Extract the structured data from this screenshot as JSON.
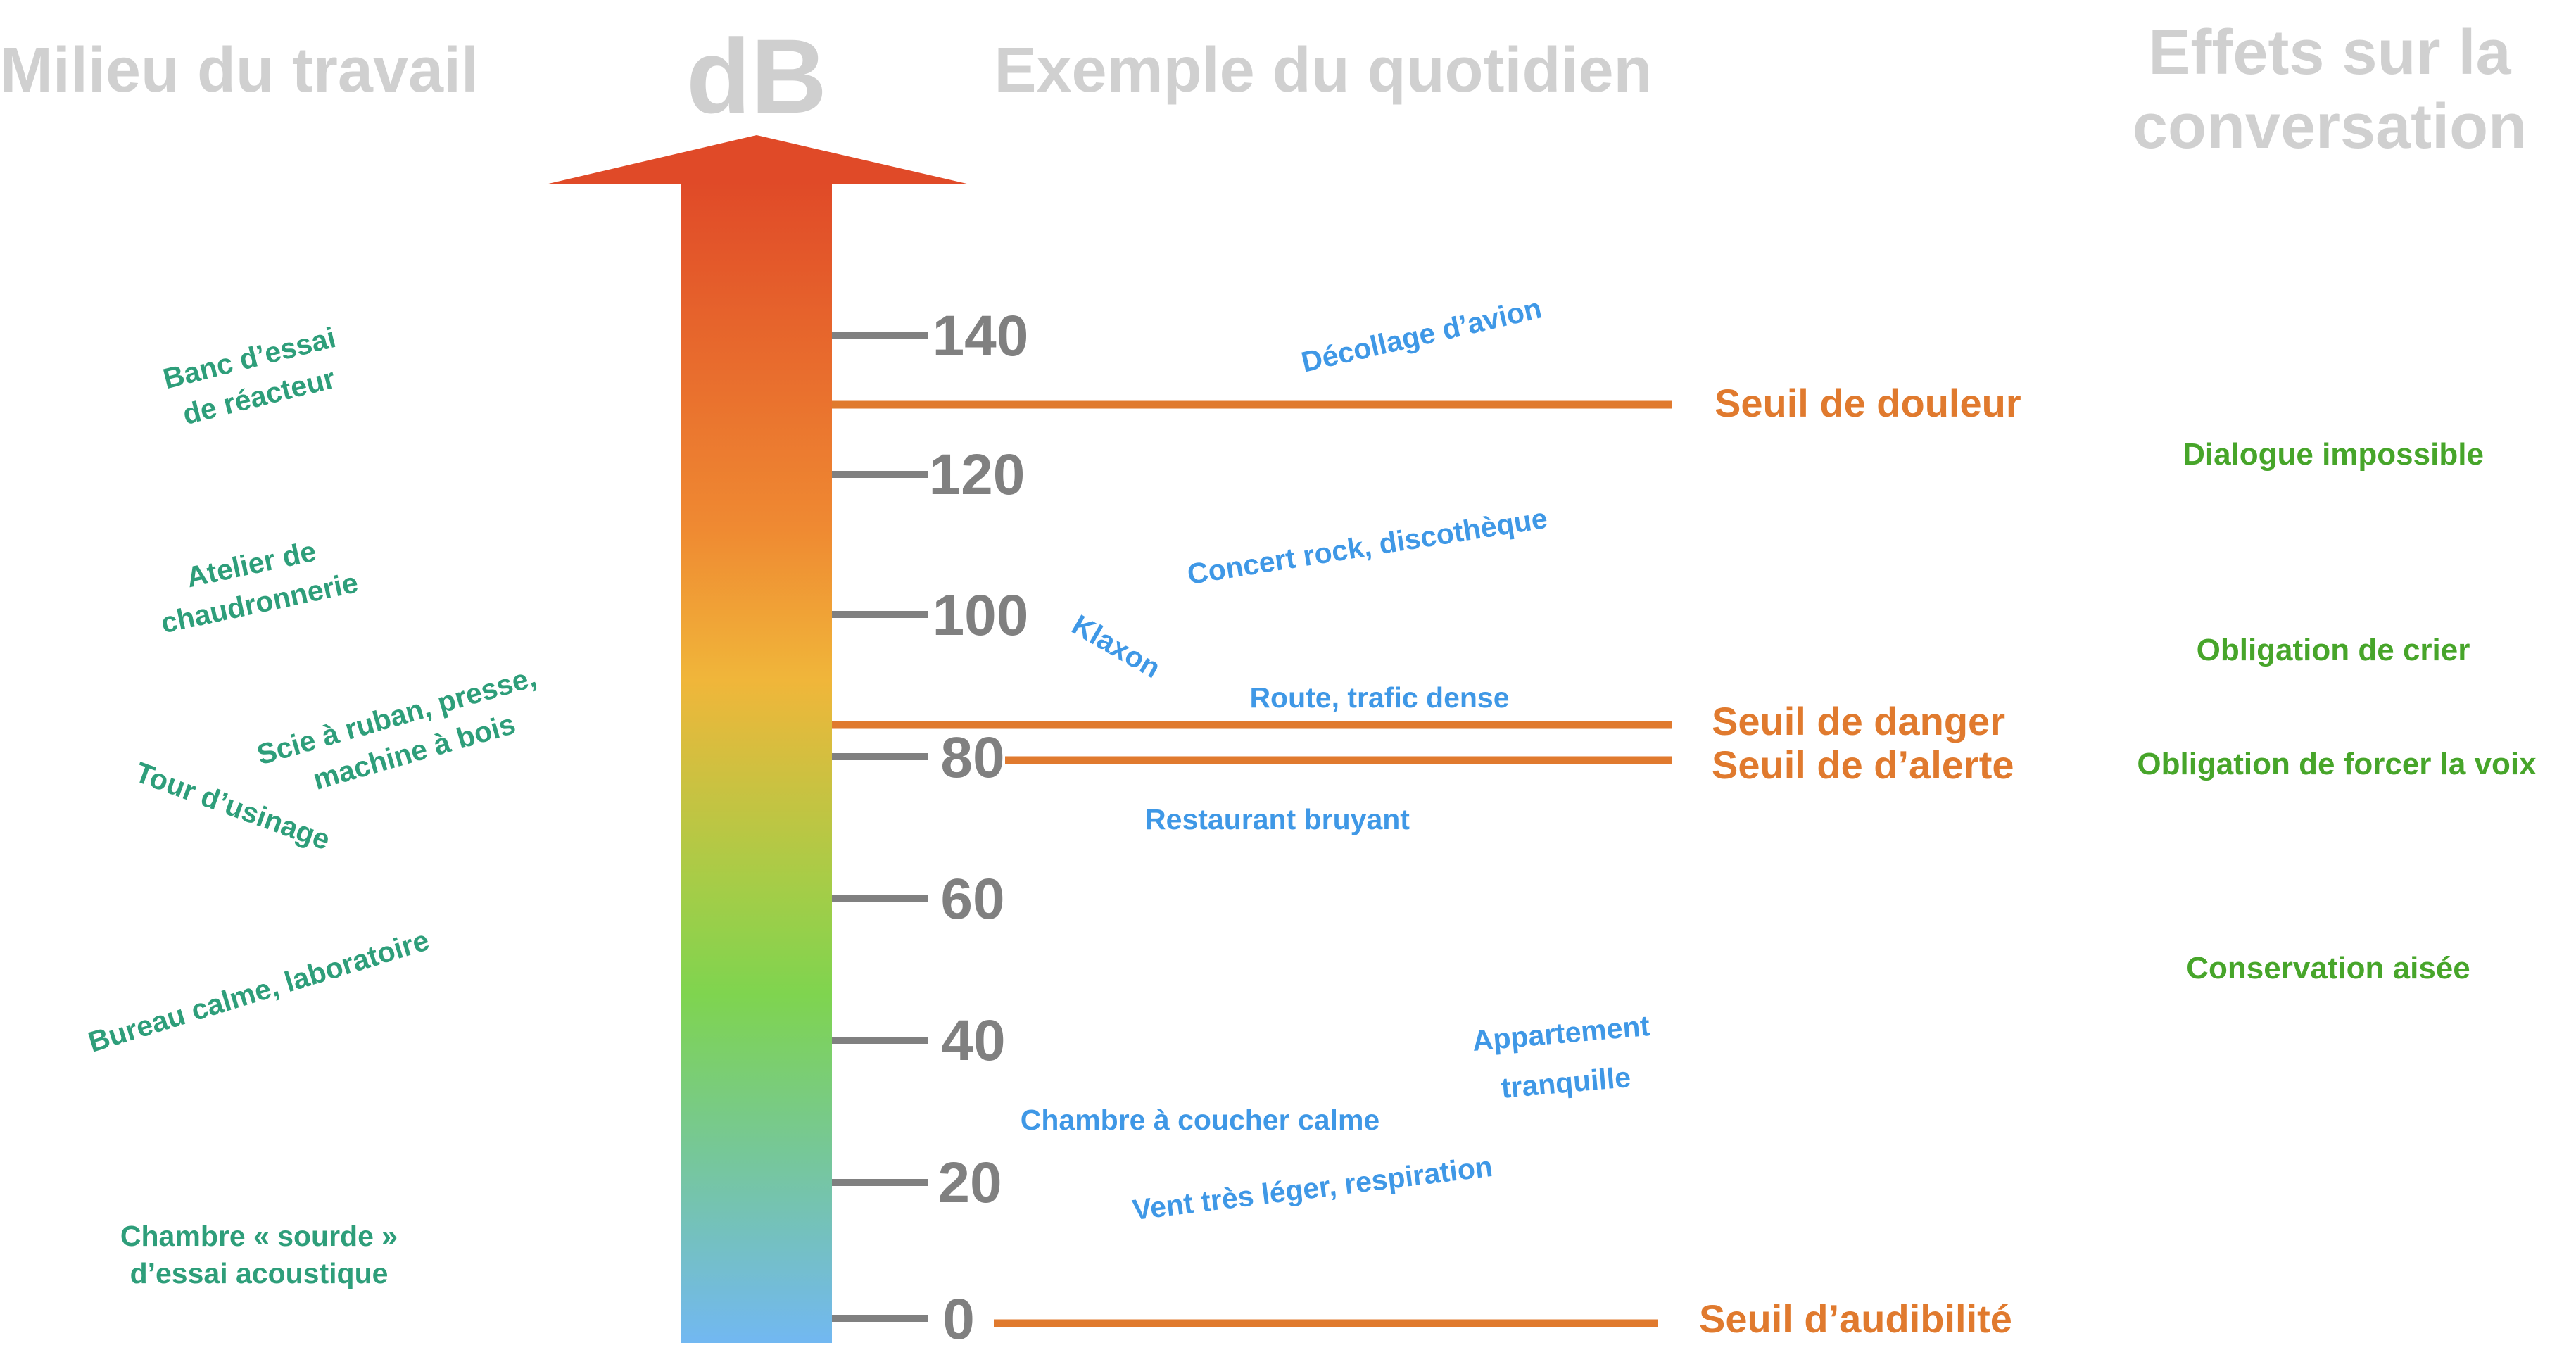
{
  "headers": {
    "workplace": "Milieu du travail",
    "unit": "dB",
    "daily": "Exemple du quotidien",
    "effects_line1": "Effets sur la",
    "effects_line2": "conversation"
  },
  "scale": {
    "min": 0,
    "max": 140,
    "ticks": [
      "0",
      "20",
      "40",
      "60",
      "80",
      "100",
      "120",
      "140"
    ]
  },
  "thresholds": [
    {
      "label": "Seuil de douleur"
    },
    {
      "label": "Seuil de danger"
    },
    {
      "label": "Seuil de d’alerte"
    },
    {
      "label": "Seuil d’audibilité"
    }
  ],
  "workplace_examples": [
    {
      "lines": [
        "Banc d’essai",
        "de réacteur"
      ]
    },
    {
      "lines": [
        "Atelier de",
        "chaudronnerie"
      ]
    },
    {
      "lines": [
        "Scie à ruban, presse,",
        "machine à bois"
      ]
    },
    {
      "lines": [
        "Tour d’usinage"
      ]
    },
    {
      "lines": [
        "Bureau calme, laboratoire"
      ]
    },
    {
      "lines": [
        "Chambre « sourde »",
        "d’essai acoustique"
      ]
    }
  ],
  "daily_examples": [
    {
      "lines": [
        "Décollage d’avion"
      ]
    },
    {
      "lines": [
        "Concert rock, discothèque"
      ]
    },
    {
      "lines": [
        "Klaxon"
      ]
    },
    {
      "lines": [
        "Route, trafic dense"
      ]
    },
    {
      "lines": [
        "Restaurant bruyant"
      ]
    },
    {
      "lines": [
        "Appartement",
        "tranquille"
      ]
    },
    {
      "lines": [
        "Chambre à coucher calme"
      ]
    },
    {
      "lines": [
        "Vent très léger, respiration"
      ]
    }
  ],
  "effects": [
    {
      "label": "Dialogue impossible"
    },
    {
      "label": "Obligation de crier"
    },
    {
      "label": "Obligation de forcer la voix"
    },
    {
      "label": "Conservation aisée"
    }
  ],
  "colors": {
    "arrow_top": "#e04a28",
    "arrow_mid_orange": "#ef9a35",
    "arrow_yellow": "#f0b63a",
    "arrow_green": "#7fd44f",
    "arrow_bottom": "#72b8f2",
    "threshold": "#e07a2e",
    "tick": "#808080",
    "workplace_text": "#2e9e7a",
    "daily_text": "#3f98e6",
    "effects_text": "#47a52a",
    "header": "#d0d0d0"
  }
}
